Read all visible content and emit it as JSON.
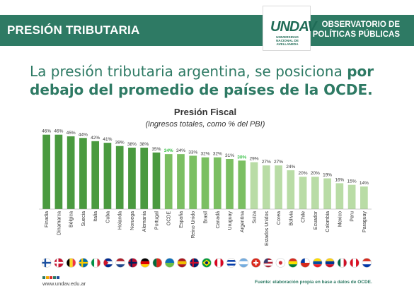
{
  "header": {
    "title": "PRESIÓN TRIBUTARIA",
    "logo_mark": "UNDAV",
    "logo_sub": [
      "UNIVERSIDAD",
      "NACIONAL DE",
      "AVELLANEDA"
    ],
    "observatory_line1": "OBSERVATORIO DE",
    "observatory_line2": "POLÍTICAS PÚBLICAS"
  },
  "headline": {
    "normal": "La presión tributaria argentina, se posiciona ",
    "bold1": "por",
    "bold2": "debajo del promedio de países de la OCDE."
  },
  "colors": {
    "brand_green": "#2e7a64",
    "bar_dark": "#4a9a3f",
    "bar_mid": "#7bbf62",
    "bar_light": "#b9dca6",
    "highlight_label": "#3cc24a"
  },
  "chart_data": {
    "type": "bar",
    "title": "Presión Fiscal",
    "subtitle": "(ingresos totales, como % del PBI)",
    "categories": [
      "Finadia",
      "Dinamarca",
      "Bélgica",
      "Suecia",
      "Italia",
      "Cuba",
      "Holanda",
      "Noruega",
      "Alemania",
      "Portugal",
      "OCDE",
      "España",
      "Reino Unido",
      "Brasil",
      "Canadá",
      "Uruguay",
      "Argentina",
      "Suiza",
      "Estados Unidos",
      "Corea",
      "Bolivia",
      "Chile",
      "Ecuador",
      "Colombia",
      "Mexico",
      "Peru",
      "Paraguay"
    ],
    "values": [
      46,
      46,
      45,
      44,
      42,
      41,
      39,
      38,
      38,
      35,
      34,
      34,
      33,
      32,
      32,
      31,
      30,
      29,
      27,
      27,
      24,
      20,
      20,
      19,
      16,
      15,
      14
    ],
    "value_labels": [
      "46%",
      "46%",
      "45%",
      "44%",
      "42%",
      "41%",
      "39%",
      "38%",
      "38%",
      "35%",
      "34%",
      "34%",
      "33%",
      "32%",
      "32%",
      "31%",
      "30%",
      "29%",
      "27%",
      "27%",
      "24%",
      "20%",
      "20%",
      "19%",
      "16%",
      "15%",
      "14%"
    ],
    "highlighted": [
      "OCDE",
      "Argentina"
    ],
    "ylim": [
      0,
      50
    ],
    "grid": false,
    "legend": "none"
  },
  "flags": [
    "fi",
    "dk",
    "be",
    "se",
    "it",
    "cu",
    "nl",
    "no",
    "de",
    "pt",
    "oecd",
    "es",
    "gb",
    "br",
    "ca",
    "uy",
    "ar",
    "ch",
    "us",
    "kr",
    "bo",
    "cl",
    "ec",
    "co",
    "mx",
    "pe",
    "py"
  ],
  "footer": {
    "url": "www.undav.edu.ar",
    "source": "Fuente: elaboración propia en base a datos de OCDE."
  }
}
